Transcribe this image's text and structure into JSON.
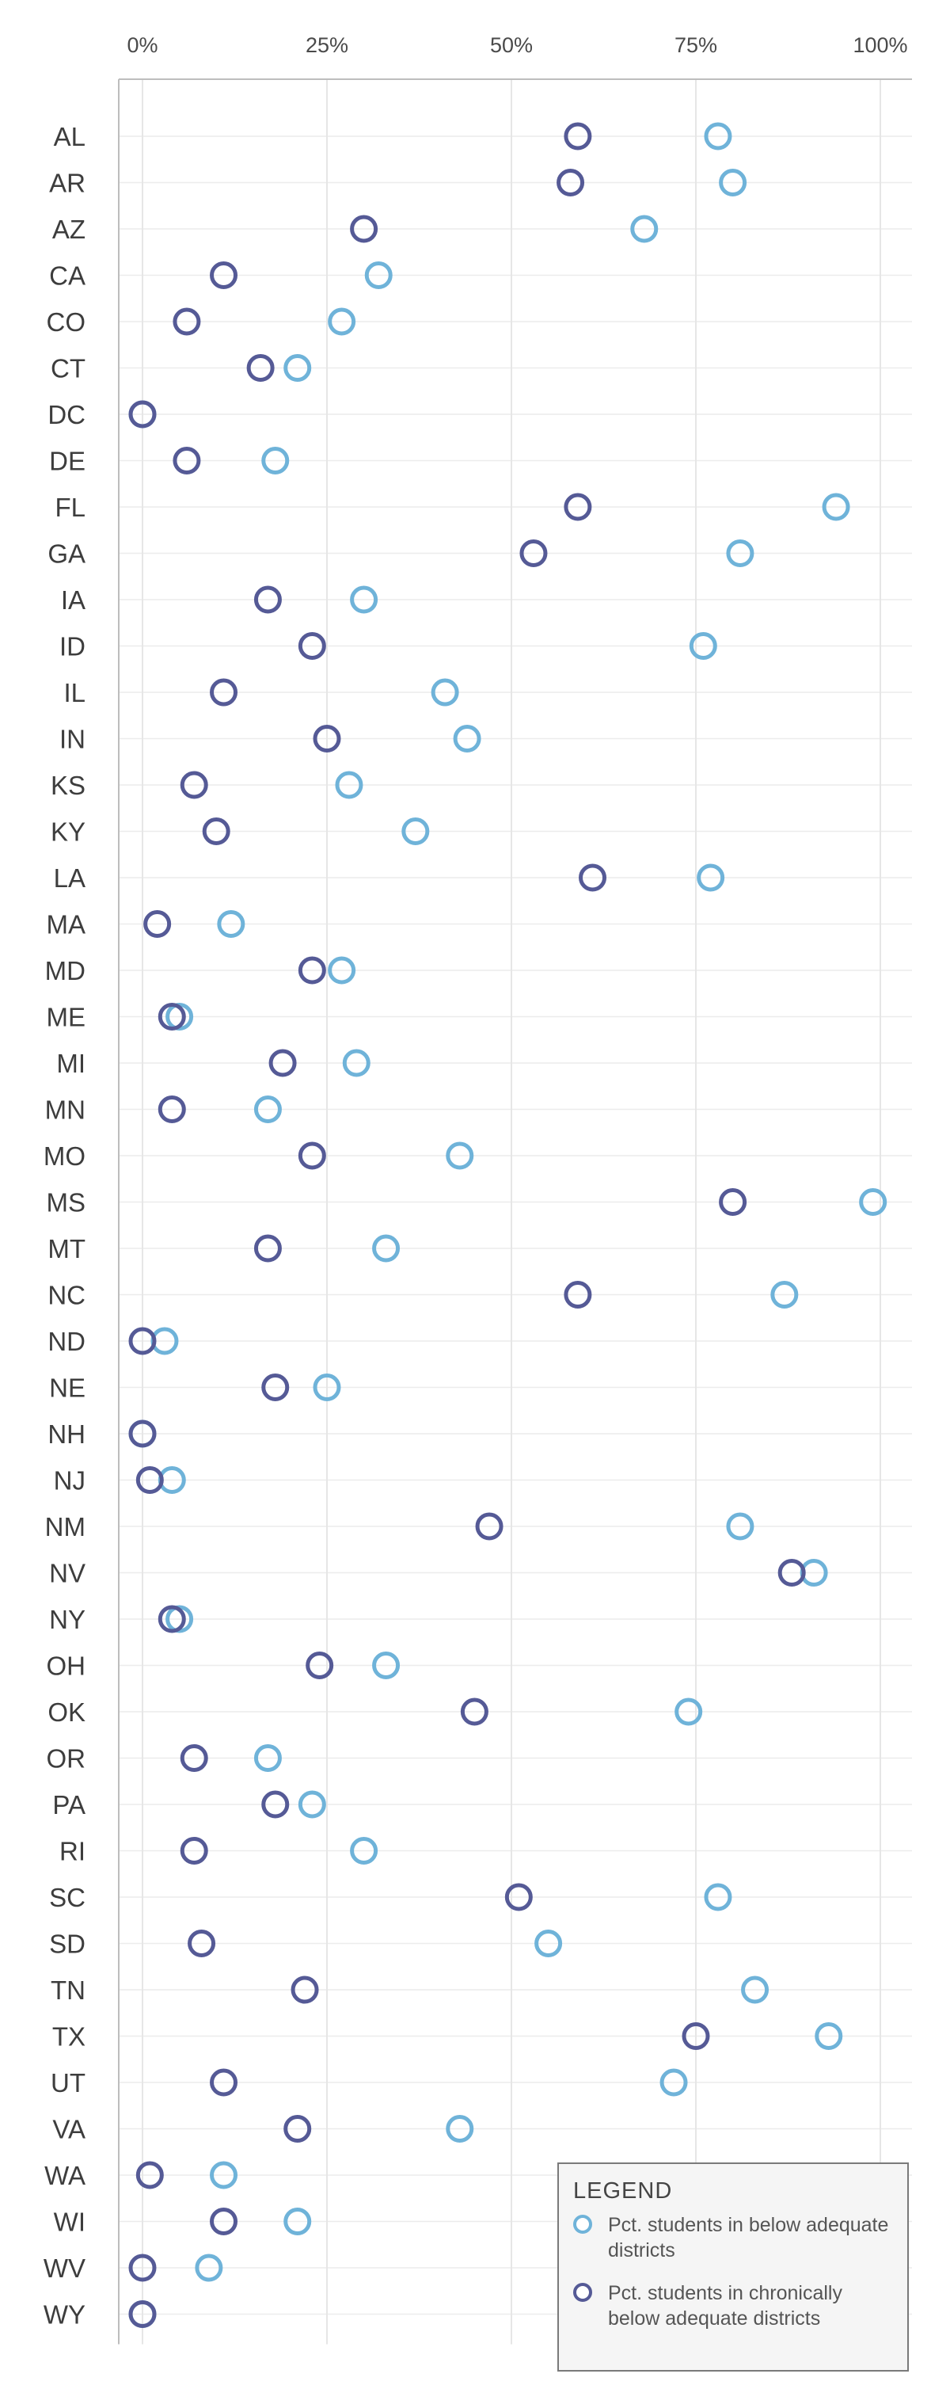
{
  "chart_data": {
    "type": "scatter",
    "x_tick_labels": [
      "0%",
      "25%",
      "50%",
      "75%",
      "100%"
    ],
    "x_ticks": [
      0,
      25,
      50,
      75,
      100
    ],
    "xlim": [
      0,
      100
    ],
    "grid": true,
    "legend_position": "bottom-right",
    "categories": [
      "AL",
      "AR",
      "AZ",
      "CA",
      "CO",
      "CT",
      "DC",
      "DE",
      "FL",
      "GA",
      "IA",
      "ID",
      "IL",
      "IN",
      "KS",
      "KY",
      "LA",
      "MA",
      "MD",
      "ME",
      "MI",
      "MN",
      "MO",
      "MS",
      "MT",
      "NC",
      "ND",
      "NE",
      "NH",
      "NJ",
      "NM",
      "NV",
      "NY",
      "OH",
      "OK",
      "OR",
      "PA",
      "RI",
      "SC",
      "SD",
      "TN",
      "TX",
      "UT",
      "VA",
      "WA",
      "WI",
      "WV",
      "WY"
    ],
    "series": [
      {
        "name": "Pct. students in below adequate districts",
        "color": "#6fb3d9",
        "values": [
          78,
          80,
          68,
          32,
          27,
          21,
          0,
          18,
          94,
          81,
          30,
          76,
          41,
          44,
          28,
          37,
          77,
          12,
          27,
          5,
          29,
          17,
          43,
          99,
          33,
          87,
          3,
          25,
          0,
          4,
          81,
          91,
          5,
          33,
          74,
          17,
          23,
          30,
          78,
          55,
          83,
          93,
          72,
          43,
          11,
          21,
          9,
          0
        ]
      },
      {
        "name": "Pct. students in chronically below adequate districts",
        "color": "#555a96",
        "values": [
          59,
          58,
          30,
          11,
          6,
          16,
          0,
          6,
          59,
          53,
          17,
          23,
          11,
          25,
          7,
          10,
          61,
          2,
          23,
          4,
          19,
          4,
          23,
          80,
          17,
          59,
          0,
          18,
          0,
          1,
          47,
          88,
          4,
          24,
          45,
          7,
          18,
          7,
          51,
          8,
          22,
          75,
          11,
          21,
          1,
          11,
          0,
          0
        ]
      }
    ]
  },
  "legend": {
    "title": "LEGEND",
    "items": [
      {
        "label": "Pct. students in below adequate districts",
        "color": "#6fb3d9"
      },
      {
        "label": "Pct. students in chronically below adequate districts",
        "color": "#555a96"
      }
    ]
  }
}
